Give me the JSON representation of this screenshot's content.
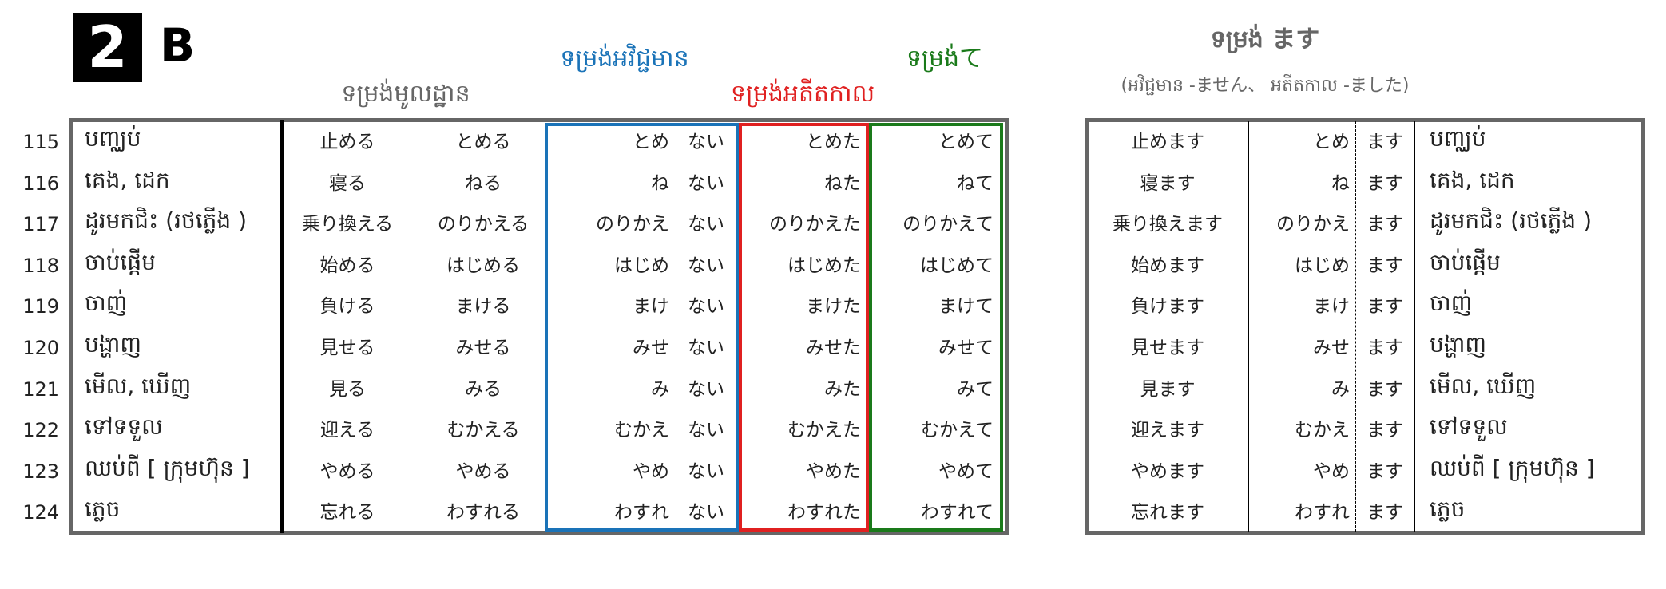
{
  "section": {
    "number": "2",
    "letter": "B"
  },
  "headers": {
    "dictionary_form": "ទម្រង់មូលដ្ឋាន",
    "negative_form": "ទម្រង់អវិជ្ជមាន",
    "past_form": "ទម្រង់អតីតកាល",
    "te_form": "ទម្រង់て",
    "masu_title": "ទម្រង់ ます",
    "masu_subtitle": "(អវិជ្ជមាន -ません、 អតីតកាល -ました)"
  },
  "colors": {
    "negative": "#1a73b8",
    "past": "#e02020",
    "te": "#1a7a1a",
    "header_gray": "#666666",
    "border": "#666666"
  },
  "rows": [
    {
      "no": "115",
      "khmer": "បញ្ឈប់",
      "kanji": "止める",
      "kana": "とめる",
      "stem": "とめ",
      "neg": "ない",
      "past": "とめた",
      "te": "とめて",
      "masu_kanji": "止めます",
      "masu_stem": "とめ",
      "masu": "ます"
    },
    {
      "no": "116",
      "khmer": "គេង, ដេក",
      "kanji": "寝る",
      "kana": "ねる",
      "stem": "ね",
      "neg": "ない",
      "past": "ねた",
      "te": "ねて",
      "masu_kanji": "寝ます",
      "masu_stem": "ね",
      "masu": "ます"
    },
    {
      "no": "117",
      "khmer": "ដូរមកជិះ (រថភ្លើង )",
      "kanji": "乗り換える",
      "kana": "のりかえる",
      "stem": "のりかえ",
      "neg": "ない",
      "past": "のりかえた",
      "te": "のりかえて",
      "masu_kanji": "乗り換えます",
      "masu_stem": "のりかえ",
      "masu": "ます"
    },
    {
      "no": "118",
      "khmer": "ចាប់ផ្ដើម",
      "kanji": "始める",
      "kana": "はじめる",
      "stem": "はじめ",
      "neg": "ない",
      "past": "はじめた",
      "te": "はじめて",
      "masu_kanji": "始めます",
      "masu_stem": "はじめ",
      "masu": "ます"
    },
    {
      "no": "119",
      "khmer": "ចាញ់",
      "kanji": "負ける",
      "kana": "まける",
      "stem": "まけ",
      "neg": "ない",
      "past": "まけた",
      "te": "まけて",
      "masu_kanji": "負けます",
      "masu_stem": "まけ",
      "masu": "ます"
    },
    {
      "no": "120",
      "khmer": "បង្ហាញ",
      "kanji": "見せる",
      "kana": "みせる",
      "stem": "みせ",
      "neg": "ない",
      "past": "みせた",
      "te": "みせて",
      "masu_kanji": "見せます",
      "masu_stem": "みせ",
      "masu": "ます"
    },
    {
      "no": "121",
      "khmer": "មើល, ឃើញ",
      "kanji": "見る",
      "kana": "みる",
      "stem": "み",
      "neg": "ない",
      "past": "みた",
      "te": "みて",
      "masu_kanji": "見ます",
      "masu_stem": "み",
      "masu": "ます"
    },
    {
      "no": "122",
      "khmer": "ទៅទទួល",
      "kanji": "迎える",
      "kana": "むかえる",
      "stem": "むかえ",
      "neg": "ない",
      "past": "むかえた",
      "te": "むかえて",
      "masu_kanji": "迎えます",
      "masu_stem": "むかえ",
      "masu": "ます"
    },
    {
      "no": "123",
      "khmer": "ឈប់ពី [ ក្រុមហ៊ុន ]",
      "kanji": "やめる",
      "kana": "やめる",
      "stem": "やめ",
      "neg": "ない",
      "past": "やめた",
      "te": "やめて",
      "masu_kanji": "やめます",
      "masu_stem": "やめ",
      "masu": "ます"
    },
    {
      "no": "124",
      "khmer": "ភ្លេច",
      "kanji": "忘れる",
      "kana": "わすれる",
      "stem": "わすれ",
      "neg": "ない",
      "past": "わすれた",
      "te": "わすれて",
      "masu_kanji": "忘れます",
      "masu_stem": "わすれ",
      "masu": "ます"
    }
  ]
}
